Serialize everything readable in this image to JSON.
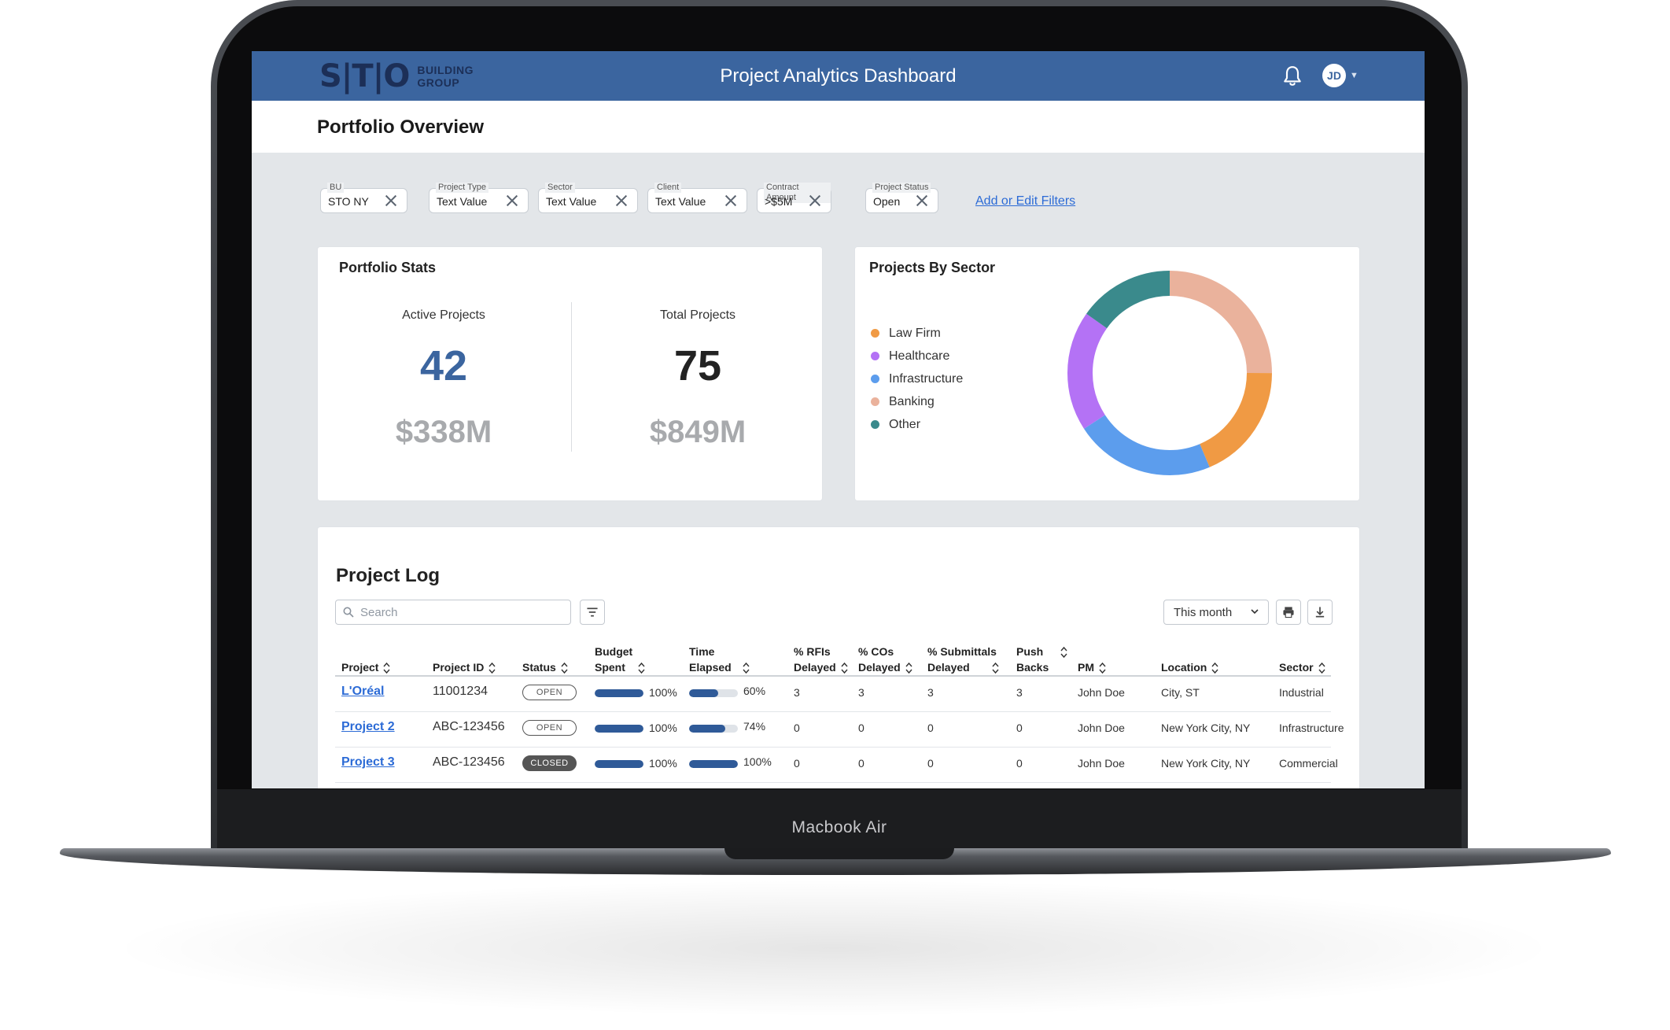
{
  "device": {
    "label": "Macbook Air"
  },
  "app": {
    "logo_mark": "S|T|O",
    "logo_sub_1": "BUILDING",
    "logo_sub_2": "GROUP",
    "title": "Project Analytics Dashboard",
    "user_initials": "JD"
  },
  "page": {
    "title": "Portfolio Overview"
  },
  "filters": [
    {
      "label": "BU",
      "value": "STO NY"
    },
    {
      "label": "Project Type",
      "value": "Text Value"
    },
    {
      "label": "Sector",
      "value": "Text Value"
    },
    {
      "label": "Client",
      "value": "Text Value"
    },
    {
      "label": "Contract Amount",
      "value": ">$5M"
    },
    {
      "label": "Project Status",
      "value": "Open"
    }
  ],
  "add_filters_link": "Add or Edit Filters",
  "portfolio_stats": {
    "title": "Portfolio Stats",
    "active": {
      "label": "Active Projects",
      "count": "42",
      "amount": "$338M"
    },
    "total": {
      "label": "Total Projects",
      "count": "75",
      "amount": "$849M"
    }
  },
  "sector_chart": {
    "title": "Projects By Sector",
    "legend": [
      {
        "name": "Law Firm",
        "color": "#f09a44"
      },
      {
        "name": "Healthcare",
        "color": "#b472f5"
      },
      {
        "name": "Infrastructure",
        "color": "#5c9ded"
      },
      {
        "name": "Banking",
        "color": "#eab29c"
      },
      {
        "name": "Other",
        "color": "#3a8a8c"
      }
    ],
    "slices": [
      {
        "name": "Banking",
        "fraction": 0.25,
        "color": "#eab29c"
      },
      {
        "name": "Law Firm",
        "fraction": 0.186,
        "color": "#f09a44"
      },
      {
        "name": "Infrastructure",
        "fraction": 0.222,
        "color": "#5c9ded"
      },
      {
        "name": "Healthcare",
        "fraction": 0.19,
        "color": "#b472f5"
      },
      {
        "name": "Other",
        "fraction": 0.152,
        "color": "#3a8a8c"
      }
    ]
  },
  "project_log": {
    "title": "Project Log",
    "search_placeholder": "Search",
    "period": "This month",
    "columns": {
      "project": "Project",
      "project_id": "Project ID",
      "status": "Status",
      "budget_1": "Budget",
      "budget_2": "Spent",
      "time_1": "Time",
      "time_2": "Elapsed",
      "rfis_1": "% RFIs",
      "rfis_2": "Delayed",
      "cos_1": "% COs",
      "cos_2": "Delayed",
      "subs_1": "% Submittals",
      "subs_2": "Delayed",
      "push_1": "Push",
      "push_2": "Backs",
      "pm": "PM",
      "location": "Location",
      "sector": "Sector"
    },
    "rows": [
      {
        "project": "L'Oréal",
        "project_id": "11001234",
        "status": "OPEN",
        "budget_pct": 100,
        "budget_label": "100%",
        "time_pct": 60,
        "time_label": "60%",
        "rfis": "3",
        "cos": "3",
        "subs": "3",
        "push": "3",
        "pm": "John Doe",
        "location": "City, ST",
        "sector": "Industrial"
      },
      {
        "project": "Project 2",
        "project_id": "ABC-123456",
        "status": "OPEN",
        "budget_pct": 100,
        "budget_label": "100%",
        "time_pct": 74,
        "time_label": "74%",
        "rfis": "0",
        "cos": "0",
        "subs": "0",
        "push": "0",
        "pm": "John Doe",
        "location": "New York City, NY",
        "sector": "Infrastructure"
      },
      {
        "project": "Project 3",
        "project_id": "ABC-123456",
        "status": "CLOSED",
        "budget_pct": 100,
        "budget_label": "100%",
        "time_pct": 100,
        "time_label": "100%",
        "rfis": "0",
        "cos": "0",
        "subs": "0",
        "push": "0",
        "pm": "John Doe",
        "location": "New York City, NY",
        "sector": "Commercial"
      }
    ]
  },
  "colors": {
    "brand": "#3b659f",
    "accent_blue": "#2f5a98",
    "link": "#2c6bd6"
  }
}
